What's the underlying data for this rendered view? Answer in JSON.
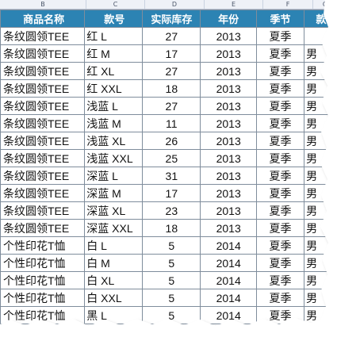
{
  "column_letters": [
    "B",
    "C",
    "D",
    "E",
    "F",
    "G"
  ],
  "headers": [
    "商品名称",
    "款号",
    "实际库存",
    "年份",
    "季节",
    "款"
  ],
  "rows": [
    [
      "条纹圆领TEE",
      "红 L",
      "27",
      "2013",
      "夏季",
      ""
    ],
    [
      "条纹圆领TEE",
      "红 M",
      "17",
      "2013",
      "夏季",
      "男"
    ],
    [
      "条纹圆领TEE",
      "红 XL",
      "27",
      "2013",
      "夏季",
      "男"
    ],
    [
      "条纹圆领TEE",
      "红 XXL",
      "18",
      "2013",
      "夏季",
      "男"
    ],
    [
      "条纹圆领TEE",
      "浅蓝 L",
      "27",
      "2013",
      "夏季",
      "男"
    ],
    [
      "条纹圆领TEE",
      "浅蓝 M",
      "11",
      "2013",
      "夏季",
      "男"
    ],
    [
      "条纹圆领TEE",
      "浅蓝 XL",
      "26",
      "2013",
      "夏季",
      "男"
    ],
    [
      "条纹圆领TEE",
      "浅蓝 XXL",
      "25",
      "2013",
      "夏季",
      "男"
    ],
    [
      "条纹圆领TEE",
      "深蓝 L",
      "31",
      "2013",
      "夏季",
      "男"
    ],
    [
      "条纹圆领TEE",
      "深蓝 M",
      "17",
      "2013",
      "夏季",
      "男"
    ],
    [
      "条纹圆领TEE",
      "深蓝 XL",
      "23",
      "2013",
      "夏季",
      "男"
    ],
    [
      "条纹圆领TEE",
      "深蓝 XXL",
      "18",
      "2013",
      "夏季",
      "男"
    ],
    [
      "个性印花T恤",
      "白 L",
      "5",
      "2014",
      "夏季",
      "男"
    ],
    [
      "个性印花T恤",
      "白 M",
      "5",
      "2014",
      "夏季",
      "男"
    ],
    [
      "个性印花T恤",
      "白 XL",
      "5",
      "2014",
      "夏季",
      "男"
    ],
    [
      "个性印花T恤",
      "白 XXL",
      "5",
      "2014",
      "夏季",
      "男"
    ],
    [
      "个性印花T恤",
      "黑 L",
      "5",
      "2014",
      "夏季",
      "男"
    ]
  ],
  "colors": {
    "header_bg": "#2c83b3",
    "header_text": "#ffffff",
    "grid_line": "#7f8d9c",
    "column_header_bg": "#eef1f7"
  }
}
